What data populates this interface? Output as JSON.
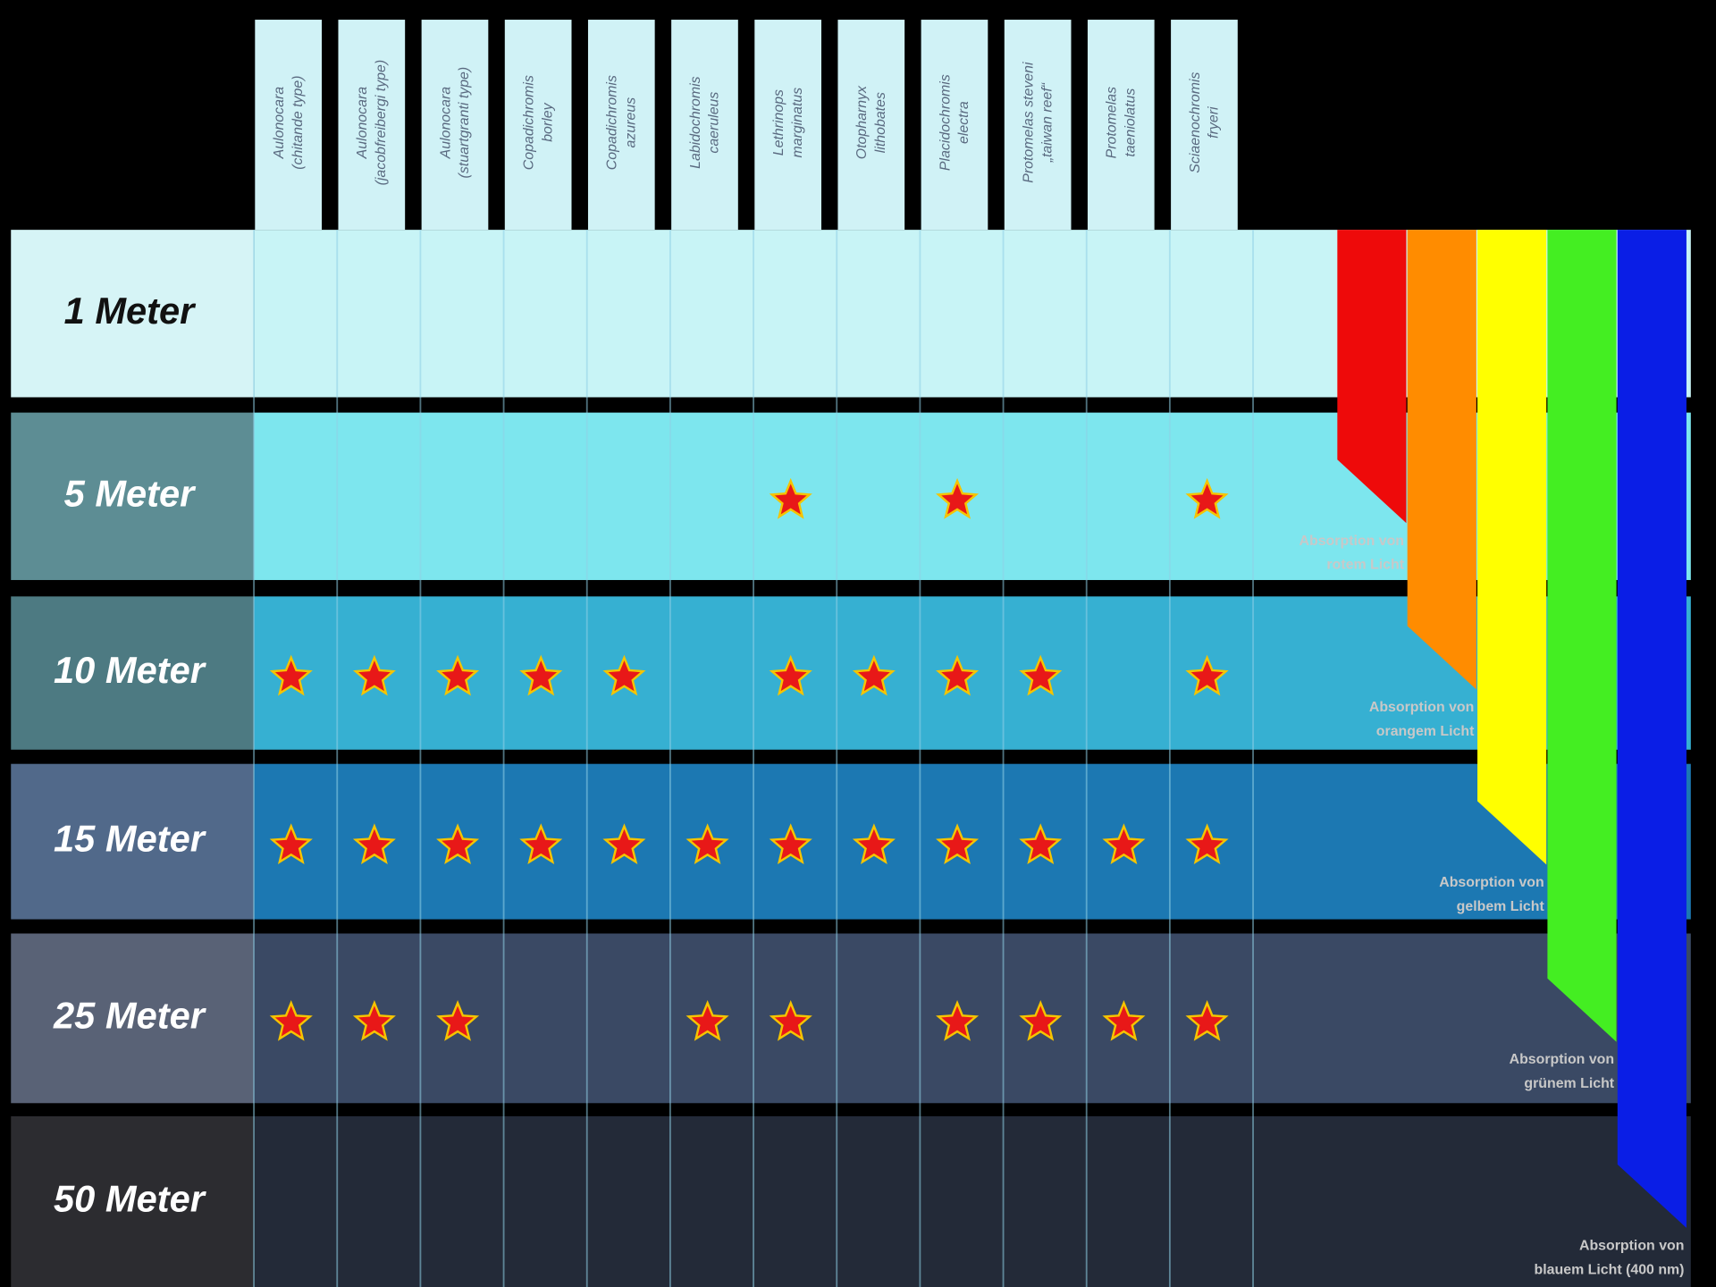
{
  "header": {
    "species": [
      [
        "Aulonocara",
        "(chitande type)"
      ],
      [
        "Aulonocara",
        "(jacobfreibergi type)"
      ],
      [
        "Aulonocara",
        "(stuartgranti type)"
      ],
      [
        "Copadichromis",
        "borley"
      ],
      [
        "Copadichromis",
        "azureus"
      ],
      [
        "Labidochromis",
        "caeruleus"
      ],
      [
        "Lethrinops",
        "marginatus"
      ],
      [
        "Otopharnyx",
        "lithobates"
      ],
      [
        "Placidochromis",
        "electra"
      ],
      [
        "Protomelas steveni",
        "„taiwan reef“"
      ],
      [
        "Protomelas",
        "taeniolatus"
      ],
      [
        "Sciaenochromis",
        "fryeri"
      ]
    ]
  },
  "rows": [
    {
      "label": "1 Meter",
      "present": [
        false,
        false,
        false,
        false,
        false,
        false,
        false,
        false,
        false,
        false,
        false,
        false
      ]
    },
    {
      "label": "5 Meter",
      "present": [
        false,
        false,
        false,
        false,
        false,
        false,
        true,
        false,
        true,
        false,
        false,
        true
      ]
    },
    {
      "label": "10 Meter",
      "present": [
        true,
        true,
        true,
        true,
        true,
        false,
        true,
        true,
        true,
        true,
        false,
        true
      ]
    },
    {
      "label": "15 Meter",
      "present": [
        true,
        true,
        true,
        true,
        true,
        true,
        true,
        true,
        true,
        true,
        true,
        true
      ]
    },
    {
      "label": "25 Meter",
      "present": [
        true,
        true,
        true,
        false,
        false,
        true,
        true,
        false,
        true,
        true,
        true,
        true
      ]
    },
    {
      "label": "50 Meter",
      "present": [
        false,
        false,
        false,
        false,
        false,
        false,
        false,
        false,
        false,
        false,
        false,
        false
      ]
    }
  ],
  "absorption": [
    {
      "color": "#ee0a0a",
      "lines": [
        "Absorption von",
        "rotem Licht"
      ]
    },
    {
      "color": "#ff8c00",
      "lines": [
        "Absorption von",
        "orangem Licht"
      ]
    },
    {
      "color": "#ffff00",
      "lines": [
        "Absorption von",
        "gelbem Licht"
      ]
    },
    {
      "color": "#44ee22",
      "lines": [
        "Absorption von",
        "grünem Licht"
      ]
    },
    {
      "color": "#0a1ee6",
      "lines": [
        "Absorption von",
        "blauem Licht (400 nm)"
      ]
    }
  ]
}
